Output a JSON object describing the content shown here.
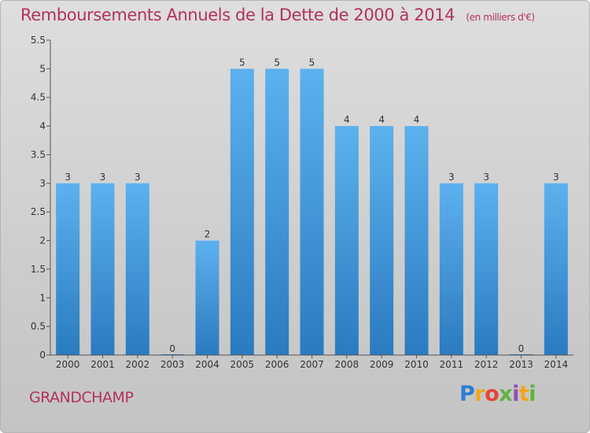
{
  "header": {
    "title": "Remboursements Annuels de la Dette de 2000 à 2014",
    "unit": "(en milliers d'€)"
  },
  "footer": {
    "commune": "GRANDCHAMP",
    "brand": "Proxiti"
  },
  "colors": {
    "title": "#b3325b",
    "bar_top": "#5cb1ee",
    "bar_bottom": "#2a7bc0",
    "axis": "#555555"
  },
  "chart_data": {
    "type": "bar",
    "title": "Remboursements Annuels de la Dette de 2000 à 2014",
    "xlabel": "",
    "ylabel": "",
    "ylim": [
      0,
      5.5
    ],
    "yticks": [
      "0",
      "0.5",
      "1",
      "1.5",
      "2",
      "2.5",
      "3",
      "3.5",
      "4",
      "4.5",
      "5",
      "5.5"
    ],
    "grid": false,
    "categories": [
      "2000",
      "2001",
      "2002",
      "2003",
      "2004",
      "2005",
      "2006",
      "2007",
      "2008",
      "2009",
      "2010",
      "2011",
      "2012",
      "2013",
      "2014"
    ],
    "values": [
      3,
      3,
      3,
      0,
      2,
      5,
      5,
      5,
      4,
      4,
      4,
      3,
      3,
      0,
      3
    ],
    "labels": [
      "3",
      "3",
      "3",
      "0",
      "2",
      "5",
      "5",
      "5",
      "4",
      "4",
      "4",
      "3",
      "3",
      "0",
      "3"
    ]
  }
}
